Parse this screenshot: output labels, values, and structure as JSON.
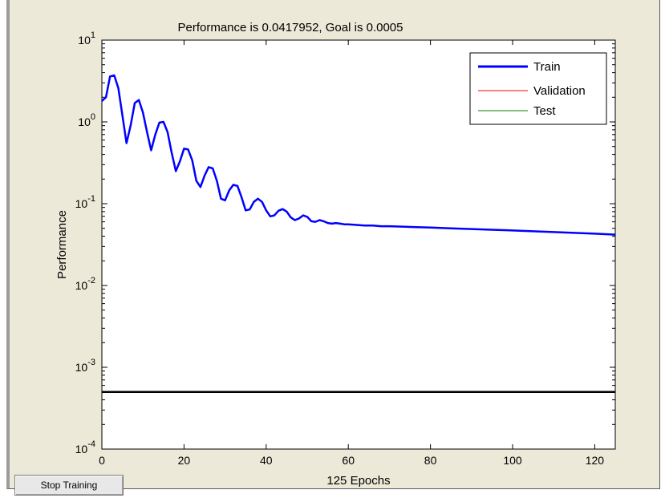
{
  "window": {
    "stop_button_label": "Stop Training"
  },
  "chart_data": {
    "type": "line",
    "title": "Performance is 0.0417952, Goal is 0.0005",
    "xlabel": "125 Epochs",
    "ylabel": "Performance",
    "xlim": [
      0,
      125
    ],
    "ylim": [
      0.0001,
      10
    ],
    "y_scale": "log",
    "grid": false,
    "legend_position": "top-right",
    "x_ticks": [
      "0",
      "20",
      "40",
      "60",
      "80",
      "100",
      "120"
    ],
    "y_ticks": [
      {
        "base": "10",
        "exp": "-4"
      },
      {
        "base": "10",
        "exp": "-3"
      },
      {
        "base": "10",
        "exp": "-2"
      },
      {
        "base": "10",
        "exp": "-1"
      },
      {
        "base": "10",
        "exp": "0"
      },
      {
        "base": "10",
        "exp": "1"
      }
    ],
    "goal": 0.0005,
    "series": [
      {
        "name": "Train",
        "color": "#0000ff",
        "x": [
          0,
          1,
          2,
          3,
          4,
          5,
          6,
          7,
          8,
          9,
          10,
          11,
          12,
          13,
          14,
          15,
          16,
          17,
          18,
          19,
          20,
          21,
          22,
          23,
          24,
          25,
          26,
          27,
          28,
          29,
          30,
          31,
          32,
          33,
          34,
          35,
          36,
          37,
          38,
          39,
          40,
          41,
          42,
          43,
          44,
          45,
          46,
          47,
          48,
          49,
          50,
          51,
          52,
          53,
          54,
          55,
          56,
          57,
          58,
          59,
          60,
          62,
          64,
          66,
          68,
          70,
          75,
          80,
          85,
          90,
          95,
          100,
          105,
          110,
          115,
          120,
          125
        ],
        "values": [
          1.8,
          2.0,
          3.6,
          3.7,
          2.6,
          1.2,
          0.55,
          0.9,
          1.7,
          1.85,
          1.3,
          0.75,
          0.45,
          0.7,
          0.98,
          1.0,
          0.75,
          0.42,
          0.25,
          0.33,
          0.47,
          0.46,
          0.34,
          0.19,
          0.16,
          0.22,
          0.28,
          0.27,
          0.19,
          0.115,
          0.11,
          0.145,
          0.17,
          0.165,
          0.12,
          0.083,
          0.085,
          0.105,
          0.115,
          0.105,
          0.083,
          0.07,
          0.072,
          0.082,
          0.086,
          0.08,
          0.068,
          0.063,
          0.066,
          0.072,
          0.069,
          0.061,
          0.06,
          0.063,
          0.061,
          0.058,
          0.057,
          0.058,
          0.057,
          0.056,
          0.056,
          0.055,
          0.054,
          0.054,
          0.053,
          0.053,
          0.052,
          0.051,
          0.05,
          0.049,
          0.048,
          0.047,
          0.046,
          0.045,
          0.044,
          0.043,
          0.0418
        ]
      },
      {
        "name": "Validation",
        "color": "#ff0000",
        "x": [],
        "values": []
      },
      {
        "name": "Test",
        "color": "#008000",
        "x": [],
        "values": []
      }
    ]
  }
}
